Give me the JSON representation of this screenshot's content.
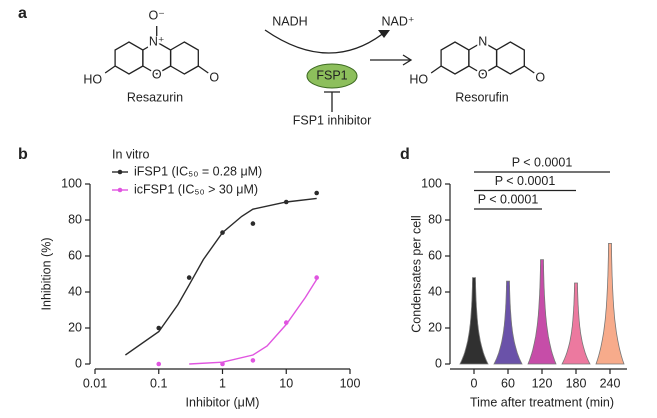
{
  "scheme": {
    "panel": "a",
    "substrate": "Resazurin",
    "product": "Resorufin",
    "cofactor_in": "NADH",
    "cofactor_out": "NAD⁺",
    "enzyme": "FSP1",
    "inhibitor": "FSP1 inhibitor",
    "atoms": {
      "oxide": "O⁻",
      "n_plus": "N⁺",
      "n": "N",
      "ho_left": "HO",
      "o_ring_left": "O",
      "o_keto_left": "O",
      "ho_right": "HO",
      "o_ring_right": "O",
      "o_keto_right": "O"
    }
  },
  "chart_data": [
    {
      "type": "scatter",
      "panel": "b",
      "legend_title": "In vitro",
      "xlabel": "Inhibitor (μM)",
      "ylabel": "Inhibition (%)",
      "xscale": "log",
      "xlim": [
        0.01,
        100
      ],
      "xticks": [
        0.01,
        0.1,
        1,
        10,
        100
      ],
      "ylim": [
        0,
        100
      ],
      "yticks": [
        0,
        20,
        40,
        60,
        80,
        100
      ],
      "series": [
        {
          "name": "iFSP1 (IC₅₀ = 0.28 μM)",
          "color": "#2b2b2b",
          "x": [
            0.1,
            0.3,
            1,
            3,
            10,
            30
          ],
          "values": [
            20,
            48,
            73,
            78,
            90,
            95
          ],
          "fit_x": [
            0.03,
            0.1,
            0.2,
            0.3,
            0.5,
            1,
            2,
            3,
            10,
            30
          ],
          "fit_values": [
            5,
            18,
            33,
            44,
            58,
            73,
            82,
            86,
            90,
            92
          ]
        },
        {
          "name": "icFSP1 (IC₅₀ > 30 μM)",
          "color": "#e055e0",
          "x": [
            0.1,
            1,
            3,
            10,
            30
          ],
          "values": [
            0,
            0,
            2,
            23,
            48
          ],
          "fit_x": [
            0.3,
            1,
            3,
            5,
            10,
            20,
            30
          ],
          "fit_values": [
            0,
            1,
            5,
            10,
            22,
            37,
            47
          ]
        }
      ]
    },
    {
      "type": "violin",
      "panel": "d",
      "xlabel": "Time after treatment (min)",
      "ylabel": "Condensates per cell",
      "categories": [
        "0",
        "60",
        "120",
        "180",
        "240"
      ],
      "ylim": [
        0,
        100
      ],
      "yticks": [
        0,
        20,
        40,
        60,
        80,
        100
      ],
      "max_values": [
        48,
        46,
        58,
        45,
        67
      ],
      "colors": [
        "#1a1a1a",
        "#5a3fa0",
        "#c03a9e",
        "#ea6a95",
        "#f6a27e"
      ],
      "annotations": [
        {
          "text": "P < 0.0001",
          "from": 0,
          "to": 4
        },
        {
          "text": "P < 0.0001",
          "from": 0,
          "to": 3
        },
        {
          "text": "P < 0.0001",
          "from": 0,
          "to": 2
        }
      ]
    }
  ]
}
